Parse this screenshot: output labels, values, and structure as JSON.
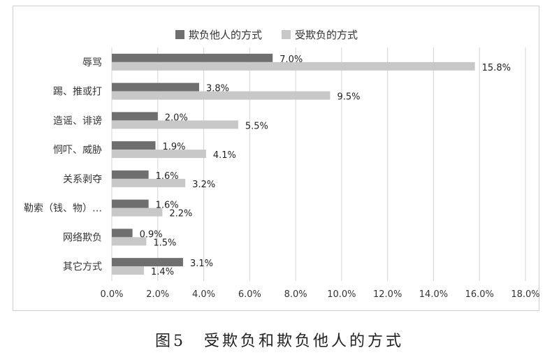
{
  "chart_data": {
    "type": "bar",
    "orientation": "horizontal",
    "categories": [
      "辱骂",
      "踢、推或打",
      "造谣、诽谤",
      "恫吓、威胁",
      "关系剥夺",
      "勒索（钱、物）…",
      "网络欺负",
      "其它方式"
    ],
    "series": [
      {
        "name": "欺负他人的方式",
        "color": "#6f6f6f",
        "values": [
          7.0,
          3.8,
          2.0,
          1.9,
          1.6,
          1.6,
          0.9,
          3.1
        ],
        "labels": [
          "7.0%",
          "3.8%",
          "2.0%",
          "1.9%",
          "1.6%",
          "1.6%",
          "0.9%",
          "3.1%"
        ]
      },
      {
        "name": "受欺负的方式",
        "color": "#c8c8c8",
        "values": [
          15.8,
          9.5,
          5.5,
          4.1,
          3.2,
          2.2,
          1.5,
          1.4
        ],
        "labels": [
          "15.8%",
          "9.5%",
          "5.5%",
          "4.1%",
          "3.2%",
          "2.2%",
          "1.5%",
          "1.4%"
        ]
      }
    ],
    "xlim": [
      0,
      18
    ],
    "xticks": [
      0,
      2,
      4,
      6,
      8,
      10,
      12,
      14,
      16,
      18
    ],
    "xtick_labels": [
      "0.0%",
      "2.0%",
      "4.0%",
      "6.0%",
      "8.0%",
      "10.0%",
      "12.0%",
      "14.0%",
      "16.0%",
      "18.0%"
    ],
    "grid": true,
    "legend_position": "top"
  },
  "caption": "图5　受欺负和欺负他人的方式"
}
